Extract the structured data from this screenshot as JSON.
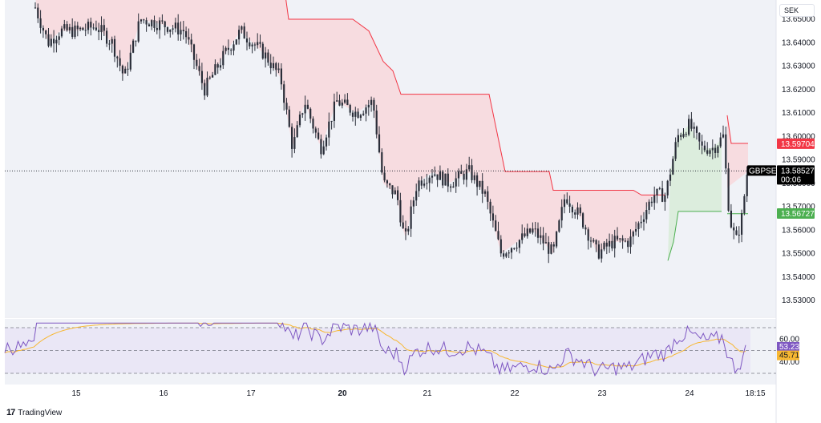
{
  "chart_data": [
    {
      "type": "candlestick",
      "symbol": "GBPSEK",
      "currency": "SEK",
      "price_axis_ticks": [
        "13.65000",
        "13.64000",
        "13.63000",
        "13.62000",
        "13.61000",
        "13.60000",
        "13.59000",
        "13.58000",
        "13.57000",
        "13.56000",
        "13.55000",
        "13.54000",
        "13.53000"
      ],
      "ylim": [
        13.525,
        13.655
      ],
      "x_ticks": [
        "15",
        "16",
        "17",
        "20",
        "21",
        "22",
        "23",
        "24",
        "18:15"
      ],
      "last_price": {
        "label": "GBPSEK",
        "value": "13.58527",
        "countdown": "00:06",
        "color": "#000000"
      },
      "upper_band_value": {
        "value": "13.59704",
        "color": "#f23645"
      },
      "lower_band_value": {
        "value": "13.56727",
        "color": "#4caf50"
      },
      "bands": {
        "upper_color": "#f23645",
        "lower_color": "#4caf50",
        "fill_upper": "#f8d8dc",
        "fill_lower": "#d9ecd9"
      },
      "candle_colors": {
        "up": "#089981",
        "down": "#f23645",
        "body": "#2a2e39"
      }
    },
    {
      "type": "line",
      "indicator": "RSI",
      "series": [
        {
          "values_color": "#7e57c2",
          "last_value": "53.23"
        },
        {
          "values_color": "#f7b731",
          "last_value": "45.71"
        }
      ],
      "y_ticks": [
        "60.00",
        "40.00"
      ],
      "ylim": [
        30,
        70
      ],
      "band_fill": "#e9e4f5"
    }
  ],
  "branding": {
    "logo": "17",
    "name": "TradingView"
  }
}
